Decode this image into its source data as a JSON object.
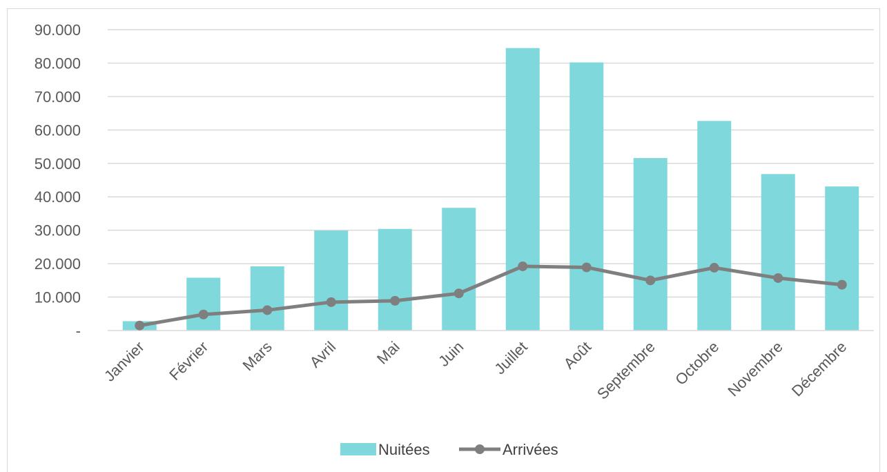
{
  "chart_data": {
    "type": "bar",
    "categories": [
      "Janvier",
      "Février",
      "Mars",
      "Avril",
      "Mai",
      "Juin",
      "Juillet",
      "Août",
      "Septembre",
      "Octobre",
      "Novembre",
      "Décembre"
    ],
    "series": [
      {
        "name": "Nuitées",
        "type": "bar",
        "color": "#7fd9dc",
        "values": [
          2800,
          15800,
          19200,
          29900,
          30400,
          36700,
          84500,
          80200,
          51600,
          62700,
          46800,
          43100
        ]
      },
      {
        "name": "Arrivées",
        "type": "line",
        "color": "#7f7f7f",
        "values": [
          1500,
          4800,
          6100,
          8500,
          8900,
          11100,
          19200,
          18900,
          15000,
          18800,
          15700,
          13700
        ]
      }
    ],
    "ylim": [
      0,
      90000
    ],
    "ytick_values": [
      0,
      10000,
      20000,
      30000,
      40000,
      50000,
      60000,
      70000,
      80000,
      90000
    ],
    "ytick_labels": [
      "-",
      "10.000",
      "20.000",
      "30.000",
      "40.000",
      "50.000",
      "60.000",
      "70.000",
      "80.000",
      "90.000"
    ],
    "grid": true,
    "legend_position": "bottom"
  }
}
